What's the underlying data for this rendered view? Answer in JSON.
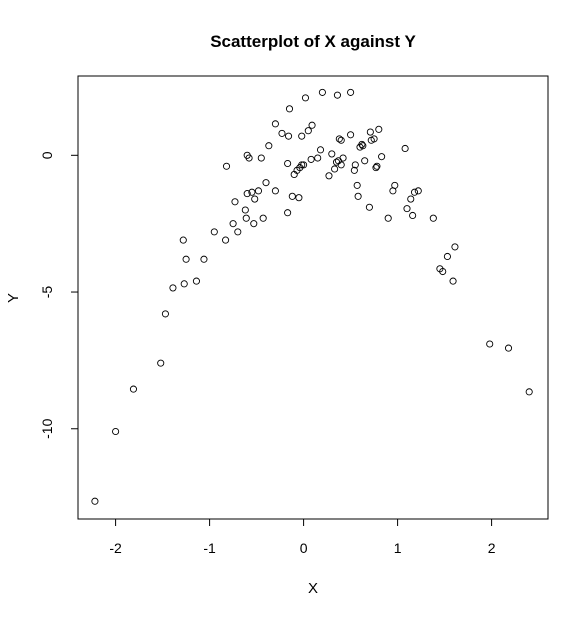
{
  "chart_data": {
    "type": "scatter",
    "title": "Scatterplot of X against Y",
    "xlabel": "X",
    "ylabel": "Y",
    "xlim": [
      -2.4,
      2.6
    ],
    "ylim": [
      -13.3,
      2.9
    ],
    "xticks": [
      -2,
      -1,
      0,
      1,
      2
    ],
    "xtick_labels": [
      "-2",
      "-1",
      "0",
      "1",
      "2"
    ],
    "yticks": [
      -10,
      -5,
      0
    ],
    "ytick_labels": [
      "-10",
      "-5",
      "0"
    ],
    "grid": false,
    "legend": "none",
    "points": [
      [
        -2.22,
        -12.65
      ],
      [
        -2.0,
        -10.1
      ],
      [
        -1.81,
        -8.55
      ],
      [
        -1.52,
        -7.6
      ],
      [
        -1.47,
        -5.8
      ],
      [
        -1.39,
        -4.85
      ],
      [
        -1.27,
        -4.7
      ],
      [
        -1.14,
        -4.6
      ],
      [
        -1.28,
        -3.1
      ],
      [
        -1.25,
        -3.8
      ],
      [
        -1.06,
        -3.8
      ],
      [
        -0.95,
        -2.8
      ],
      [
        -0.83,
        -3.1
      ],
      [
        -0.75,
        -2.5
      ],
      [
        -0.7,
        -2.8
      ],
      [
        -0.61,
        -2.3
      ],
      [
        -0.53,
        -2.5
      ],
      [
        -0.43,
        -2.3
      ],
      [
        -0.17,
        -2.1
      ],
      [
        -0.73,
        -1.7
      ],
      [
        -0.62,
        -2.0
      ],
      [
        -0.52,
        -1.6
      ],
      [
        -0.6,
        -1.4
      ],
      [
        -0.55,
        -1.35
      ],
      [
        -0.48,
        -1.3
      ],
      [
        -0.4,
        -1.0
      ],
      [
        -0.3,
        -1.3
      ],
      [
        -0.12,
        -1.5
      ],
      [
        -0.05,
        -1.55
      ],
      [
        -0.82,
        -0.4
      ],
      [
        -0.6,
        0.0
      ],
      [
        -0.58,
        -0.1
      ],
      [
        -0.45,
        -0.1
      ],
      [
        -0.37,
        0.35
      ],
      [
        -0.3,
        1.15
      ],
      [
        -0.23,
        0.8
      ],
      [
        -0.16,
        0.7
      ],
      [
        -0.15,
        1.7
      ],
      [
        -0.17,
        -0.3
      ],
      [
        -0.1,
        -0.7
      ],
      [
        -0.07,
        -0.55
      ],
      [
        -0.04,
        -0.45
      ],
      [
        -0.02,
        -0.35
      ],
      [
        0.0,
        -0.35
      ],
      [
        -0.02,
        0.7
      ],
      [
        0.02,
        2.1
      ],
      [
        0.05,
        0.9
      ],
      [
        0.09,
        1.1
      ],
      [
        0.08,
        -0.15
      ],
      [
        0.15,
        -0.1
      ],
      [
        0.18,
        0.2
      ],
      [
        0.2,
        2.3
      ],
      [
        0.27,
        -0.75
      ],
      [
        0.3,
        0.05
      ],
      [
        0.33,
        -0.5
      ],
      [
        0.35,
        -0.25
      ],
      [
        0.37,
        -0.2
      ],
      [
        0.4,
        -0.35
      ],
      [
        0.42,
        -0.1
      ],
      [
        0.36,
        2.2
      ],
      [
        0.38,
        0.6
      ],
      [
        0.4,
        0.55
      ],
      [
        0.5,
        2.3
      ],
      [
        0.5,
        0.75
      ],
      [
        0.54,
        -0.55
      ],
      [
        0.55,
        -0.35
      ],
      [
        0.57,
        -1.1
      ],
      [
        0.58,
        -1.5
      ],
      [
        0.6,
        0.3
      ],
      [
        0.62,
        0.4
      ],
      [
        0.63,
        0.35
      ],
      [
        0.65,
        -0.2
      ],
      [
        0.7,
        -1.9
      ],
      [
        0.71,
        0.85
      ],
      [
        0.72,
        0.55
      ],
      [
        0.75,
        0.6
      ],
      [
        0.77,
        -0.45
      ],
      [
        0.78,
        -0.4
      ],
      [
        0.8,
        0.95
      ],
      [
        0.83,
        -0.05
      ],
      [
        0.9,
        -2.3
      ],
      [
        0.95,
        -1.3
      ],
      [
        0.97,
        -1.1
      ],
      [
        1.08,
        0.25
      ],
      [
        1.1,
        -1.95
      ],
      [
        1.14,
        -1.6
      ],
      [
        1.16,
        -2.2
      ],
      [
        1.18,
        -1.35
      ],
      [
        1.22,
        -1.3
      ],
      [
        1.38,
        -2.3
      ],
      [
        1.45,
        -4.15
      ],
      [
        1.48,
        -4.25
      ],
      [
        1.53,
        -3.7
      ],
      [
        1.59,
        -4.6
      ],
      [
        1.61,
        -3.35
      ],
      [
        1.98,
        -6.9
      ],
      [
        2.18,
        -7.05
      ],
      [
        2.4,
        -8.65
      ]
    ]
  }
}
